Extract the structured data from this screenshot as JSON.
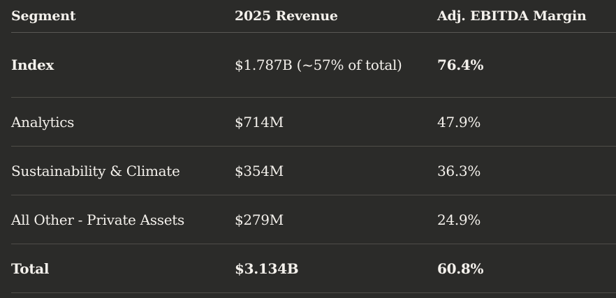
{
  "table": {
    "headers": [
      "Segment",
      "2025 Revenue",
      "Adj. EBITDA Margin"
    ],
    "rows": [
      {
        "segment": "Index",
        "revenue": "$1.787B (~57% of total)",
        "margin": "76.4%",
        "emphasis": "segment,margin"
      },
      {
        "segment": "Analytics",
        "revenue": "$714M",
        "margin": "47.9%",
        "emphasis": "none"
      },
      {
        "segment": "Sustainability & Climate",
        "revenue": "$354M",
        "margin": "36.3%",
        "emphasis": "none"
      },
      {
        "segment": "All Other - Private Assets",
        "revenue": "$279M",
        "margin": "24.9%",
        "emphasis": "none"
      },
      {
        "segment": "Total",
        "revenue": "$3.134B",
        "margin": "60.8%",
        "emphasis": "all"
      }
    ]
  },
  "colors": {
    "background": "#2b2b29",
    "text": "#f4f1ec",
    "divider": "#4f4d49"
  }
}
